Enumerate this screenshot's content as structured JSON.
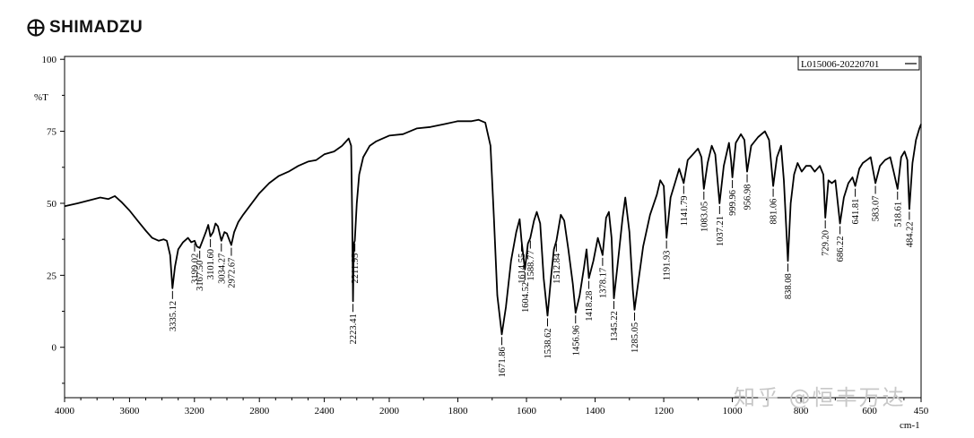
{
  "logo": {
    "brand": "SHIMADZU"
  },
  "chart_data": {
    "type": "line",
    "title": "",
    "legend": "L015006-20220701",
    "xlabel": "cm-1",
    "ylabel": "%T",
    "xlim": [
      4000,
      450
    ],
    "ylim": [
      -17.5,
      101
    ],
    "x_ticks": [
      4000,
      3600,
      3200,
      2800,
      2400,
      2000,
      1800,
      1600,
      1400,
      1200,
      1000,
      800,
      600,
      450
    ],
    "y_ticks": [
      100,
      75,
      50,
      25,
      0
    ],
    "series": [
      {
        "name": "L015006-20220701",
        "points": [
          [
            4000,
            49
          ],
          [
            3920,
            50
          ],
          [
            3850,
            51
          ],
          [
            3780,
            52
          ],
          [
            3730,
            51.5
          ],
          [
            3690,
            52.5
          ],
          [
            3650,
            50.5
          ],
          [
            3600,
            47.5
          ],
          [
            3550,
            44
          ],
          [
            3500,
            40.5
          ],
          [
            3460,
            38
          ],
          [
            3420,
            37
          ],
          [
            3390,
            37.5
          ],
          [
            3370,
            37
          ],
          [
            3350,
            32
          ],
          [
            3335.12,
            20.5
          ],
          [
            3320,
            28
          ],
          [
            3300,
            34
          ],
          [
            3270,
            36.5
          ],
          [
            3240,
            38
          ],
          [
            3220,
            36.5
          ],
          [
            3199.02,
            37
          ],
          [
            3185,
            35
          ],
          [
            3167.5,
            34.5
          ],
          [
            3150,
            37
          ],
          [
            3130,
            40
          ],
          [
            3115,
            42.5
          ],
          [
            3101.6,
            38.5
          ],
          [
            3085,
            40
          ],
          [
            3070,
            43
          ],
          [
            3055,
            42
          ],
          [
            3034.27,
            37
          ],
          [
            3015,
            40
          ],
          [
            3000,
            39.5
          ],
          [
            2990,
            38
          ],
          [
            2972.67,
            35.5
          ],
          [
            2955,
            40
          ],
          [
            2930,
            43.5
          ],
          [
            2900,
            46
          ],
          [
            2860,
            49
          ],
          [
            2800,
            53.5
          ],
          [
            2740,
            57
          ],
          [
            2680,
            59.5
          ],
          [
            2620,
            61
          ],
          [
            2560,
            63
          ],
          [
            2500,
            64.5
          ],
          [
            2450,
            65
          ],
          [
            2400,
            67
          ],
          [
            2340,
            68
          ],
          [
            2290,
            70
          ],
          [
            2250,
            72.5
          ],
          [
            2235,
            70
          ],
          [
            2228,
            45
          ],
          [
            2223.41,
            16
          ],
          [
            2218,
            36
          ],
          [
            2211.95,
            37
          ],
          [
            2200,
            50
          ],
          [
            2185,
            60
          ],
          [
            2160,
            66
          ],
          [
            2120,
            70
          ],
          [
            2080,
            71.5
          ],
          [
            2040,
            72.5
          ],
          [
            2000,
            73.5
          ],
          [
            1960,
            74
          ],
          [
            1920,
            76
          ],
          [
            1880,
            76.5
          ],
          [
            1840,
            77.5
          ],
          [
            1800,
            78.5
          ],
          [
            1760,
            78.5
          ],
          [
            1740,
            79
          ],
          [
            1720,
            78
          ],
          [
            1705,
            70
          ],
          [
            1695,
            45
          ],
          [
            1685,
            18
          ],
          [
            1671.86,
            4.5
          ],
          [
            1660,
            14
          ],
          [
            1645,
            30
          ],
          [
            1630,
            40
          ],
          [
            1620,
            44.5
          ],
          [
            1614.55,
            37
          ],
          [
            1604.52,
            27
          ],
          [
            1596,
            36
          ],
          [
            1588.77,
            38
          ],
          [
            1578,
            44
          ],
          [
            1570,
            47
          ],
          [
            1560,
            43
          ],
          [
            1550,
            24
          ],
          [
            1538.62,
            11
          ],
          [
            1528,
            25
          ],
          [
            1520,
            34
          ],
          [
            1512.84,
            37
          ],
          [
            1500,
            46
          ],
          [
            1490,
            44
          ],
          [
            1478,
            34
          ],
          [
            1465,
            22
          ],
          [
            1456.96,
            12
          ],
          [
            1445,
            18
          ],
          [
            1432,
            28
          ],
          [
            1425,
            34
          ],
          [
            1418.28,
            24
          ],
          [
            1405,
            30
          ],
          [
            1392,
            38
          ],
          [
            1385,
            35
          ],
          [
            1378.17,
            32
          ],
          [
            1368,
            45
          ],
          [
            1360,
            47
          ],
          [
            1352,
            38
          ],
          [
            1345.22,
            17
          ],
          [
            1335,
            28
          ],
          [
            1320,
            45
          ],
          [
            1312,
            52
          ],
          [
            1300,
            40
          ],
          [
            1290,
            20
          ],
          [
            1285.05,
            13
          ],
          [
            1275,
            22
          ],
          [
            1260,
            35
          ],
          [
            1240,
            46
          ],
          [
            1220,
            53
          ],
          [
            1210,
            58
          ],
          [
            1200,
            56
          ],
          [
            1191.93,
            38
          ],
          [
            1180,
            52
          ],
          [
            1165,
            58
          ],
          [
            1155,
            62
          ],
          [
            1141.79,
            57
          ],
          [
            1130,
            65
          ],
          [
            1115,
            67
          ],
          [
            1100,
            69
          ],
          [
            1090,
            66
          ],
          [
            1083.05,
            55
          ],
          [
            1072,
            64
          ],
          [
            1060,
            70
          ],
          [
            1050,
            67
          ],
          [
            1037.21,
            50
          ],
          [
            1025,
            63
          ],
          [
            1010,
            71
          ],
          [
            1004,
            65
          ],
          [
            999.96,
            59
          ],
          [
            990,
            71
          ],
          [
            975,
            74
          ],
          [
            965,
            72
          ],
          [
            956.98,
            61
          ],
          [
            945,
            70
          ],
          [
            925,
            73
          ],
          [
            905,
            75
          ],
          [
            893,
            72
          ],
          [
            881.06,
            56
          ],
          [
            870,
            66
          ],
          [
            858,
            70
          ],
          [
            850,
            58
          ],
          [
            838.08,
            30
          ],
          [
            830,
            50
          ],
          [
            820,
            60
          ],
          [
            810,
            64
          ],
          [
            798,
            61
          ],
          [
            785,
            63
          ],
          [
            772,
            63
          ],
          [
            760,
            61
          ],
          [
            745,
            63
          ],
          [
            735,
            60
          ],
          [
            729.2,
            45
          ],
          [
            720,
            58
          ],
          [
            710,
            57
          ],
          [
            700,
            58
          ],
          [
            686.22,
            43
          ],
          [
            675,
            52
          ],
          [
            662,
            57
          ],
          [
            650,
            59
          ],
          [
            641.81,
            56
          ],
          [
            630,
            62
          ],
          [
            620,
            64
          ],
          [
            608,
            65
          ],
          [
            597,
            66
          ],
          [
            583.07,
            57
          ],
          [
            570,
            63
          ],
          [
            555,
            65
          ],
          [
            540,
            66
          ],
          [
            530,
            61
          ],
          [
            518.61,
            55
          ],
          [
            508,
            66
          ],
          [
            498,
            68
          ],
          [
            490,
            65
          ],
          [
            484.22,
            48
          ],
          [
            475,
            64
          ],
          [
            465,
            72
          ],
          [
            455,
            76
          ],
          [
            450,
            77.5
          ]
        ]
      }
    ],
    "peaks": [
      {
        "x": 3335.12,
        "label": "3335.12"
      },
      {
        "x": 3199.02,
        "label": "3199.02"
      },
      {
        "x": 3167.5,
        "label": "3167.50"
      },
      {
        "x": 3101.6,
        "label": "3101.60"
      },
      {
        "x": 3034.27,
        "label": "3034.27"
      },
      {
        "x": 2972.67,
        "label": "2972.67"
      },
      {
        "x": 2223.41,
        "label": "2223.41"
      },
      {
        "x": 2211.95,
        "label": "2211.95"
      },
      {
        "x": 1671.86,
        "label": "1671.86"
      },
      {
        "x": 1614.55,
        "label": "1614.55"
      },
      {
        "x": 1604.52,
        "label": "1604.52"
      },
      {
        "x": 1588.77,
        "label": "1588.77"
      },
      {
        "x": 1538.62,
        "label": "1538.62"
      },
      {
        "x": 1512.84,
        "label": "1512.84"
      },
      {
        "x": 1456.96,
        "label": "1456.96"
      },
      {
        "x": 1418.28,
        "label": "1418.28"
      },
      {
        "x": 1378.17,
        "label": "1378.17"
      },
      {
        "x": 1345.22,
        "label": "1345.22"
      },
      {
        "x": 1285.05,
        "label": "1285.05"
      },
      {
        "x": 1191.93,
        "label": "1191.93"
      },
      {
        "x": 1141.79,
        "label": "1141.79"
      },
      {
        "x": 1083.05,
        "label": "1083.05"
      },
      {
        "x": 1037.21,
        "label": "1037.21"
      },
      {
        "x": 999.96,
        "label": "999.96"
      },
      {
        "x": 956.98,
        "label": "956.98"
      },
      {
        "x": 881.06,
        "label": "881.06"
      },
      {
        "x": 838.08,
        "label": "838.08"
      },
      {
        "x": 729.2,
        "label": "729.20"
      },
      {
        "x": 686.22,
        "label": "686.22"
      },
      {
        "x": 641.81,
        "label": "641.81"
      },
      {
        "x": 583.07,
        "label": "583.07"
      },
      {
        "x": 518.61,
        "label": "518.61"
      },
      {
        "x": 484.22,
        "label": "484.22"
      }
    ],
    "grid": false,
    "legend_placement": "top-right"
  },
  "watermark": "知乎 @恒丰万达"
}
